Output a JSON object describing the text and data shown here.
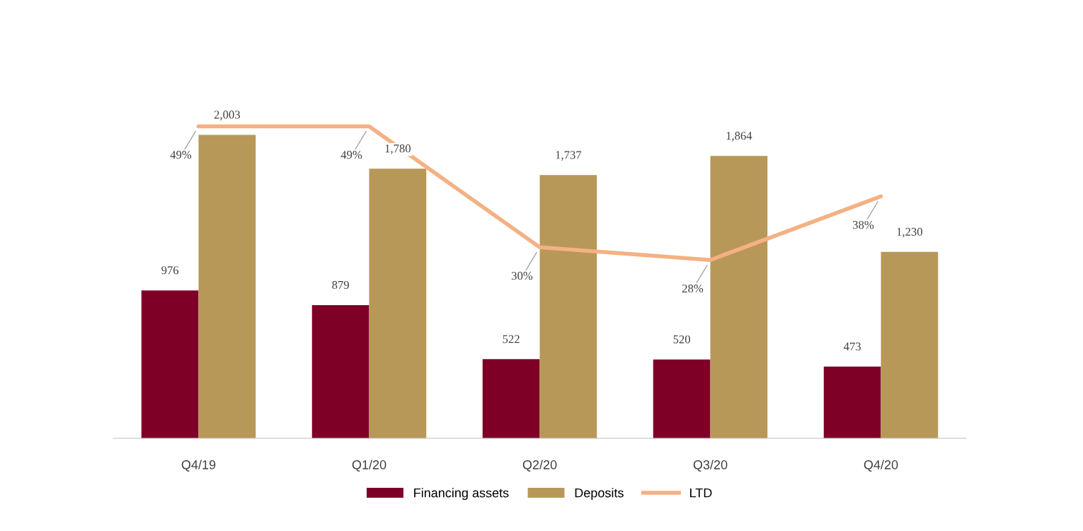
{
  "chart_data": {
    "type": "bar",
    "categories": [
      "Q4/19",
      "Q1/20",
      "Q2/20",
      "Q3/20",
      "Q4/20"
    ],
    "series": [
      {
        "name": "Financing assets",
        "color": "#7f0027",
        "values": [
          976,
          879,
          522,
          520,
          473
        ],
        "value_labels": [
          "976",
          "879",
          "522",
          "520",
          "473"
        ]
      },
      {
        "name": "Deposits",
        "color": "#b89858",
        "values": [
          2003,
          1780,
          1737,
          1864,
          1230
        ],
        "value_labels": [
          "2,003",
          "1,780",
          "1,737",
          "1,864",
          "1,230"
        ]
      },
      {
        "name": "LTD",
        "type": "line",
        "axis": "y2",
        "color": "#f4b183",
        "values": [
          49,
          49,
          30,
          28,
          38
        ],
        "value_labels": [
          "49%",
          "49%",
          "30%",
          "28%",
          "38%"
        ]
      }
    ],
    "tick_labels": "x",
    "grid": false,
    "legend": "bottom",
    "marker": "none",
    "line_style": "solid"
  }
}
